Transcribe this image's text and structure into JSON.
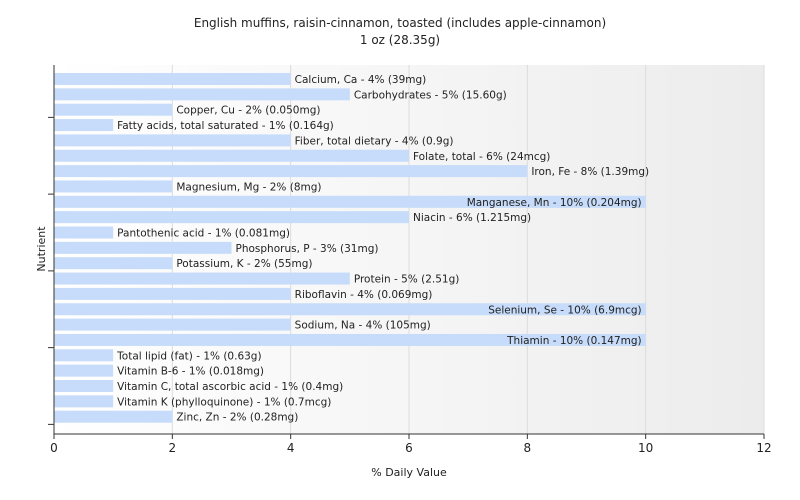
{
  "chart_data": {
    "type": "bar",
    "orientation": "horizontal",
    "title": "English muffins, raisin-cinnamon, toasted (includes apple-cinnamon)",
    "subtitle": "1 oz (28.35g)",
    "xlabel": "% Daily Value",
    "ylabel": "Nutrient",
    "xlim": [
      0,
      12
    ],
    "xticks": [
      "0",
      "2",
      "4",
      "6",
      "8",
      "10",
      "12"
    ],
    "grid": "vertical",
    "bar_color": "#c6dcfa",
    "categories": [
      "Calcium, Ca",
      "Carbohydrates",
      "Copper, Cu",
      "Fatty acids, total saturated",
      "Fiber, total dietary",
      "Folate, total",
      "Iron, Fe",
      "Magnesium, Mg",
      "Manganese, Mn",
      "Niacin",
      "Pantothenic acid",
      "Phosphorus, P",
      "Potassium, K",
      "Protein",
      "Riboflavin",
      "Selenium, Se",
      "Sodium, Na",
      "Thiamin",
      "Total lipid (fat)",
      "Vitamin B-6",
      "Vitamin C, total ascorbic acid",
      "Vitamin K (phylloquinone)",
      "Zinc, Zn"
    ],
    "values": [
      4,
      5,
      2,
      1,
      4,
      6,
      8,
      2,
      10,
      6,
      1,
      3,
      2,
      5,
      4,
      10,
      4,
      10,
      1,
      1,
      1,
      1,
      2
    ],
    "labels": [
      "Calcium, Ca - 4% (39mg)",
      "Carbohydrates - 5% (15.60g)",
      "Copper, Cu - 2% (0.050mg)",
      "Fatty acids, total saturated - 1% (0.164g)",
      "Fiber, total dietary - 4% (0.9g)",
      "Folate, total - 6% (24mcg)",
      "Iron, Fe - 8% (1.39mg)",
      "Magnesium, Mg - 2% (8mg)",
      "Manganese, Mn - 10% (0.204mg)",
      "Niacin - 6% (1.215mg)",
      "Pantothenic acid - 1% (0.081mg)",
      "Phosphorus, P - 3% (31mg)",
      "Potassium, K - 2% (55mg)",
      "Protein - 5% (2.51g)",
      "Riboflavin - 4% (0.069mg)",
      "Selenium, Se - 10% (6.9mcg)",
      "Sodium, Na - 4% (105mg)",
      "Thiamin - 10% (0.147mg)",
      "Total lipid (fat) - 1% (0.63g)",
      "Vitamin B-6 - 1% (0.018mg)",
      "Vitamin C, total ascorbic acid - 1% (0.4mg)",
      "Vitamin K (phylloquinone) - 1% (0.7mcg)",
      "Zinc, Zn - 2% (0.28mg)"
    ]
  }
}
